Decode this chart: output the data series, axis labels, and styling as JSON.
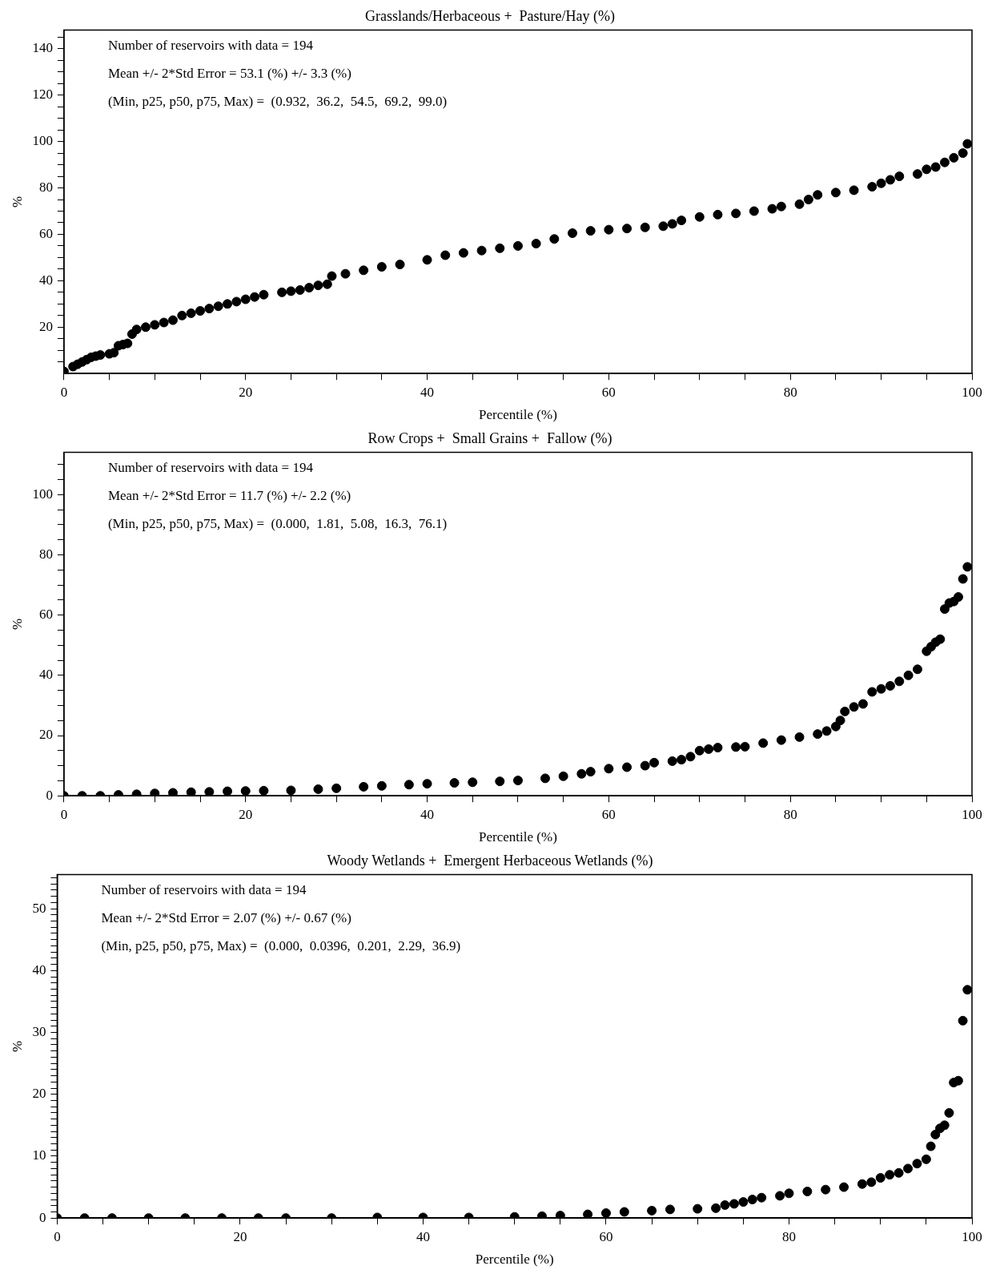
{
  "chart_data": [
    {
      "type": "scatter",
      "title": "Grasslands/Herbaceous +  Pasture/Hay (%)",
      "xlabel": "Percentile (%)",
      "ylabel": "%",
      "marker": "circle",
      "grid": false,
      "legend": false,
      "annotations": [
        "Number of reservoirs with data = 194",
        "Mean +/- 2*Std Error = 53.1 (%) +/- 3.3 (%)",
        "(Min, p25, p50, p75, Max) =  (0.932,  36.2,  54.5,  69.2,  99.0)"
      ],
      "xlim": [
        0,
        100
      ],
      "ylim": [
        0,
        148
      ],
      "xticks": [
        0,
        {
          "value": 5,
          "label": null
        },
        {
          "value": 10,
          "label": null
        },
        {
          "value": 15,
          "label": null
        },
        20,
        {
          "value": 25,
          "label": null
        },
        {
          "value": 30,
          "label": null
        },
        {
          "value": 35,
          "label": null
        },
        40,
        {
          "value": 45,
          "label": null
        },
        {
          "value": 50,
          "label": null
        },
        {
          "value": 55,
          "label": null
        },
        60,
        {
          "value": 65,
          "label": null
        },
        {
          "value": 70,
          "label": null
        },
        {
          "value": 75,
          "label": null
        },
        80,
        {
          "value": 85,
          "label": null
        },
        {
          "value": 90,
          "label": null
        },
        {
          "value": 95,
          "label": null
        },
        100
      ],
      "yticks": [
        {
          "value": 5,
          "label": null
        },
        {
          "value": 10,
          "label": null
        },
        {
          "value": 15,
          "label": null
        },
        20,
        {
          "value": 25,
          "label": null
        },
        {
          "value": 30,
          "label": null
        },
        {
          "value": 35,
          "label": null
        },
        40,
        {
          "value": 45,
          "label": null
        },
        {
          "value": 50,
          "label": null
        },
        {
          "value": 55,
          "label": null
        },
        60,
        {
          "value": 65,
          "label": null
        },
        {
          "value": 70,
          "label": null
        },
        {
          "value": 75,
          "label": null
        },
        80,
        {
          "value": 85,
          "label": null
        },
        {
          "value": 90,
          "label": null
        },
        {
          "value": 95,
          "label": null
        },
        100,
        {
          "value": 105,
          "label": null
        },
        {
          "value": 110,
          "label": null
        },
        {
          "value": 115,
          "label": null
        },
        120,
        {
          "value": 125,
          "label": null
        },
        {
          "value": 130,
          "label": null
        },
        {
          "value": 135,
          "label": null
        },
        140,
        {
          "value": 145,
          "label": null
        }
      ],
      "series": [
        {
          "color": "#000000",
          "x": [
            0,
            1,
            1.5,
            2,
            2.5,
            3,
            3.5,
            4,
            5,
            5.5,
            6,
            6.5,
            7,
            7.5,
            8,
            9,
            10,
            11,
            12,
            13,
            14,
            15,
            16,
            17,
            18,
            19,
            20,
            21,
            22,
            24,
            25,
            26,
            27,
            28,
            29,
            29.5,
            31,
            33,
            35,
            37,
            40,
            42,
            44,
            46,
            48,
            50,
            52,
            54,
            56,
            58,
            60,
            62,
            64,
            66,
            67,
            68,
            70,
            72,
            74,
            76,
            78,
            79,
            81,
            82,
            83,
            85,
            87,
            89,
            90,
            91,
            92,
            94,
            95,
            96,
            97,
            98,
            99,
            99.5
          ],
          "values": [
            0.93,
            3,
            4,
            5,
            6,
            7,
            7.5,
            8,
            8.5,
            9,
            12,
            12.5,
            13,
            17,
            19,
            20,
            21,
            22,
            23,
            25,
            26,
            27,
            28,
            29,
            30,
            31,
            32,
            33,
            34,
            35,
            35.5,
            36,
            37,
            38,
            38.5,
            42,
            43,
            44.5,
            46,
            47,
            49,
            51,
            52,
            53,
            54,
            55,
            56,
            58,
            60.5,
            61.5,
            62,
            62.5,
            63,
            63.5,
            64.5,
            66,
            67.5,
            68.5,
            69,
            70,
            71,
            72,
            73,
            75,
            77,
            78,
            79,
            80.5,
            82,
            83.5,
            85,
            86,
            88,
            89,
            91,
            93,
            95,
            99
          ]
        }
      ]
    },
    {
      "type": "scatter",
      "title": "Row Crops +  Small Grains +  Fallow (%)",
      "xlabel": "Percentile (%)",
      "ylabel": "%",
      "marker": "circle",
      "grid": false,
      "legend": false,
      "annotations": [
        "Number of reservoirs with data = 194",
        "Mean +/- 2*Std Error = 11.7 (%) +/- 2.2 (%)",
        "(Min, p25, p50, p75, Max) =  (0.000,  1.81,  5.08,  16.3,  76.1)"
      ],
      "xlim": [
        0,
        100
      ],
      "ylim": [
        0,
        114
      ],
      "xticks": [
        0,
        {
          "value": 5,
          "label": null
        },
        {
          "value": 10,
          "label": null
        },
        {
          "value": 15,
          "label": null
        },
        20,
        {
          "value": 25,
          "label": null
        },
        {
          "value": 30,
          "label": null
        },
        {
          "value": 35,
          "label": null
        },
        40,
        {
          "value": 45,
          "label": null
        },
        {
          "value": 50,
          "label": null
        },
        {
          "value": 55,
          "label": null
        },
        60,
        {
          "value": 65,
          "label": null
        },
        {
          "value": 70,
          "label": null
        },
        {
          "value": 75,
          "label": null
        },
        80,
        {
          "value": 85,
          "label": null
        },
        {
          "value": 90,
          "label": null
        },
        {
          "value": 95,
          "label": null
        },
        100
      ],
      "yticks": [
        0,
        {
          "value": 5,
          "label": null
        },
        {
          "value": 10,
          "label": null
        },
        {
          "value": 15,
          "label": null
        },
        20,
        {
          "value": 25,
          "label": null
        },
        {
          "value": 30,
          "label": null
        },
        {
          "value": 35,
          "label": null
        },
        40,
        {
          "value": 45,
          "label": null
        },
        {
          "value": 50,
          "label": null
        },
        {
          "value": 55,
          "label": null
        },
        60,
        {
          "value": 65,
          "label": null
        },
        {
          "value": 70,
          "label": null
        },
        {
          "value": 75,
          "label": null
        },
        80,
        {
          "value": 85,
          "label": null
        },
        {
          "value": 90,
          "label": null
        },
        {
          "value": 95,
          "label": null
        },
        100,
        {
          "value": 105,
          "label": null
        },
        {
          "value": 110,
          "label": null
        }
      ],
      "series": [
        {
          "color": "#000000",
          "x": [
            0,
            2,
            4,
            6,
            8,
            10,
            12,
            14,
            16,
            18,
            20,
            22,
            25,
            28,
            30,
            33,
            35,
            38,
            40,
            43,
            45,
            48,
            50,
            53,
            55,
            57,
            58,
            60,
            62,
            64,
            65,
            67,
            68,
            69,
            70,
            71,
            72,
            74,
            75,
            77,
            79,
            81,
            83,
            84,
            85,
            85.5,
            86,
            87,
            88,
            89,
            90,
            91,
            92,
            93,
            94,
            95,
            95.5,
            96,
            96.5,
            97,
            97.5,
            98,
            98.5,
            99,
            99.5
          ],
          "values": [
            0,
            0,
            0,
            0.3,
            0.5,
            0.8,
            1,
            1.2,
            1.3,
            1.5,
            1.6,
            1.7,
            1.8,
            2.2,
            2.5,
            3,
            3.3,
            3.7,
            4,
            4.3,
            4.5,
            4.8,
            5.1,
            5.8,
            6.5,
            7.3,
            8,
            9,
            9.5,
            10,
            11,
            11.5,
            12,
            13,
            15,
            15.5,
            16,
            16.2,
            16.3,
            17.5,
            18.5,
            19.5,
            20.5,
            21.5,
            23,
            25,
            28,
            29.5,
            30.5,
            34.5,
            35.5,
            36.5,
            38,
            40,
            42,
            48,
            49.5,
            51,
            52,
            62,
            64,
            64.5,
            66,
            72,
            76
          ]
        }
      ]
    },
    {
      "type": "scatter",
      "title": "Woody Wetlands +  Emergent Herbaceous Wetlands (%)",
      "xlabel": "Percentile (%)",
      "ylabel": "%",
      "marker": "circle",
      "grid": false,
      "legend": false,
      "annotations": [
        "Number of reservoirs with data = 194",
        "Mean +/- 2*Std Error = 2.07 (%) +/- 0.67 (%)",
        "(Min, p25, p50, p75, Max) =  (0.000,  0.0396,  0.201,  2.29,  36.9)"
      ],
      "xlim": [
        0,
        100
      ],
      "ylim": [
        0,
        55.5
      ],
      "xticks": [
        0,
        {
          "value": 5,
          "label": null
        },
        {
          "value": 10,
          "label": null
        },
        {
          "value": 15,
          "label": null
        },
        20,
        {
          "value": 25,
          "label": null
        },
        {
          "value": 30,
          "label": null
        },
        {
          "value": 35,
          "label": null
        },
        40,
        {
          "value": 45,
          "label": null
        },
        {
          "value": 50,
          "label": null
        },
        {
          "value": 55,
          "label": null
        },
        60,
        {
          "value": 65,
          "label": null
        },
        {
          "value": 70,
          "label": null
        },
        {
          "value": 75,
          "label": null
        },
        80,
        {
          "value": 85,
          "label": null
        },
        {
          "value": 90,
          "label": null
        },
        {
          "value": 95,
          "label": null
        },
        100
      ],
      "yticks": [
        0,
        {
          "value": 1,
          "label": null
        },
        {
          "value": 2,
          "label": null
        },
        {
          "value": 3,
          "label": null
        },
        {
          "value": 4,
          "label": null
        },
        {
          "value": 5,
          "label": null
        },
        {
          "value": 6,
          "label": null
        },
        {
          "value": 7,
          "label": null
        },
        {
          "value": 8,
          "label": null
        },
        {
          "value": 9,
          "label": null
        },
        10,
        {
          "value": 11,
          "label": null
        },
        {
          "value": 12,
          "label": null
        },
        {
          "value": 13,
          "label": null
        },
        {
          "value": 14,
          "label": null
        },
        {
          "value": 15,
          "label": null
        },
        {
          "value": 16,
          "label": null
        },
        {
          "value": 17,
          "label": null
        },
        {
          "value": 18,
          "label": null
        },
        {
          "value": 19,
          "label": null
        },
        20,
        {
          "value": 21,
          "label": null
        },
        {
          "value": 22,
          "label": null
        },
        {
          "value": 23,
          "label": null
        },
        {
          "value": 24,
          "label": null
        },
        {
          "value": 25,
          "label": null
        },
        {
          "value": 26,
          "label": null
        },
        {
          "value": 27,
          "label": null
        },
        {
          "value": 28,
          "label": null
        },
        {
          "value": 29,
          "label": null
        },
        30,
        {
          "value": 31,
          "label": null
        },
        {
          "value": 32,
          "label": null
        },
        {
          "value": 33,
          "label": null
        },
        {
          "value": 34,
          "label": null
        },
        {
          "value": 35,
          "label": null
        },
        {
          "value": 36,
          "label": null
        },
        {
          "value": 37,
          "label": null
        },
        {
          "value": 38,
          "label": null
        },
        {
          "value": 39,
          "label": null
        },
        40,
        {
          "value": 41,
          "label": null
        },
        {
          "value": 42,
          "label": null
        },
        {
          "value": 43,
          "label": null
        },
        {
          "value": 44,
          "label": null
        },
        {
          "value": 45,
          "label": null
        },
        {
          "value": 46,
          "label": null
        },
        {
          "value": 47,
          "label": null
        },
        {
          "value": 48,
          "label": null
        },
        {
          "value": 49,
          "label": null
        },
        50,
        {
          "value": 51,
          "label": null
        },
        {
          "value": 52,
          "label": null
        },
        {
          "value": 53,
          "label": null
        },
        {
          "value": 54,
          "label": null
        },
        {
          "value": 55,
          "label": null
        }
      ],
      "series": [
        {
          "color": "#000000",
          "x": [
            0,
            3,
            6,
            10,
            14,
            18,
            22,
            25,
            30,
            35,
            40,
            45,
            50,
            53,
            55,
            58,
            60,
            62,
            65,
            67,
            70,
            72,
            73,
            74,
            75,
            76,
            77,
            79,
            80,
            82,
            84,
            86,
            88,
            89,
            90,
            91,
            92,
            93,
            94,
            95,
            95.5,
            96,
            96.5,
            97,
            97.5,
            98,
            98.5,
            99,
            99.5
          ],
          "values": [
            0,
            0,
            0,
            0,
            0,
            0,
            0,
            0,
            0,
            0.1,
            0.1,
            0.1,
            0.2,
            0.3,
            0.4,
            0.6,
            0.8,
            1,
            1.2,
            1.4,
            1.5,
            1.6,
            2.1,
            2.3,
            2.6,
            3,
            3.3,
            3.6,
            4,
            4.3,
            4.6,
            5,
            5.5,
            5.8,
            6.5,
            7,
            7.3,
            8,
            8.8,
            9.5,
            11.6,
            13.5,
            14.5,
            15,
            17,
            21.9,
            22.2,
            31.9,
            36.9
          ]
        }
      ]
    }
  ]
}
